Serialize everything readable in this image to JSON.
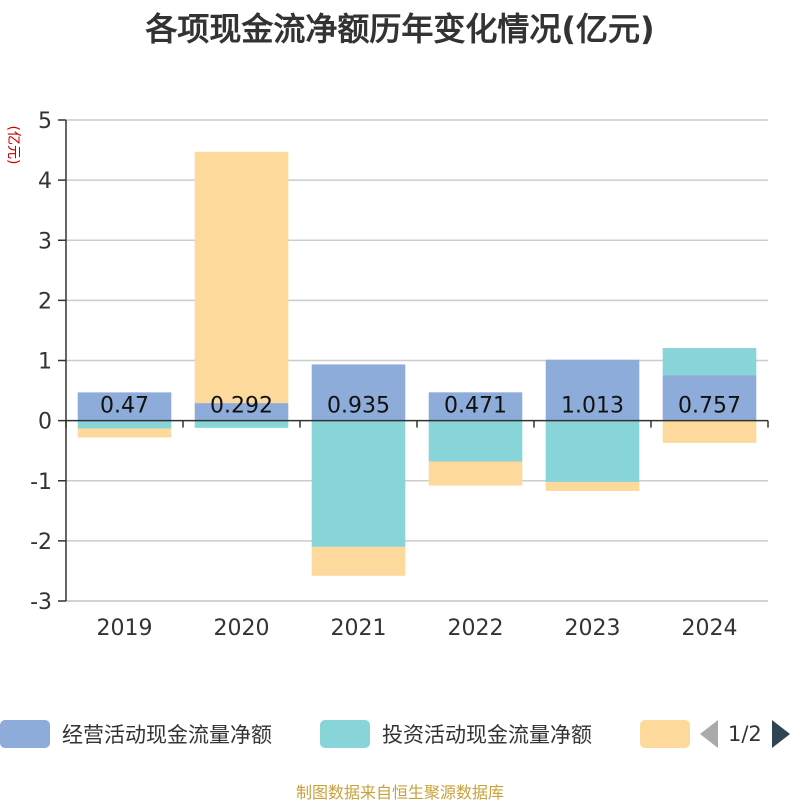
{
  "chart_data": {
    "type": "bar",
    "stacked": true,
    "title": "各项现金流净额历年变化情况(亿元)",
    "ylabel": "(亿元)",
    "xlabel": "",
    "ylim": [
      -3,
      5
    ],
    "yticks": [
      5,
      4,
      3,
      2,
      1,
      0,
      -1,
      -2,
      -3
    ],
    "categories": [
      "2019",
      "2020",
      "2021",
      "2022",
      "2023",
      "2024"
    ],
    "series": [
      {
        "name": "经营活动现金流量净额",
        "color": "#8eacd9",
        "values": [
          0.47,
          0.292,
          0.935,
          0.471,
          1.013,
          0.757
        ],
        "labels": [
          "0.47",
          "0.292",
          "0.935",
          "0.471",
          "1.013",
          "0.757"
        ]
      },
      {
        "name": "投资活动现金流量净额",
        "color": "#87d5d9",
        "values": [
          -0.13,
          -0.12,
          -2.1,
          -0.68,
          -1.02,
          0.45
        ]
      },
      {
        "name": "",
        "color": "#fdd99b",
        "values": [
          -0.15,
          4.18,
          -0.48,
          -0.4,
          -0.15,
          -0.37
        ]
      }
    ],
    "grid": true,
    "legend_position": "bottom"
  },
  "legend": {
    "page": "1/2"
  },
  "source": "制图数据来自恒生聚源数据库"
}
